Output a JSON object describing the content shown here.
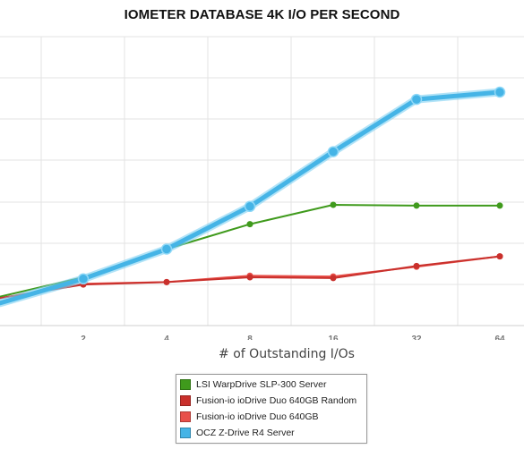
{
  "chart_data": {
    "type": "line",
    "title": "IOMETER DATABASE 4K I/O PER SECOND",
    "xlabel": "# of Outstanding I/Os",
    "ylabel": "",
    "x": [
      1,
      2,
      4,
      8,
      16,
      32,
      64
    ],
    "x_tick_labels": [
      "2",
      "4",
      "8",
      "16",
      "32",
      "64"
    ],
    "x_scale": "log2",
    "grid": true,
    "legend_position": "bottom-center",
    "series": [
      {
        "name": "LSI WarpDrive SLP-300 Server",
        "color": "#3f9a1c",
        "values": [
          36,
          60,
          95,
          126,
          150,
          149,
          149
        ]
      },
      {
        "name": "Fusion-io ioDrive Duo 640GB Random",
        "color": "#c9302c",
        "values": [
          34,
          51,
          54,
          60,
          59,
          74,
          86
        ]
      },
      {
        "name": "Fusion-io ioDrive Duo 640GB",
        "color": "#e8504a",
        "values": [
          34,
          52,
          54,
          62,
          61,
          73,
          86
        ]
      },
      {
        "name": "OCZ Z-Drive R4 Server",
        "color": "#45b4e6",
        "values": [
          28,
          58,
          95,
          148,
          216,
          281,
          290
        ]
      }
    ]
  }
}
